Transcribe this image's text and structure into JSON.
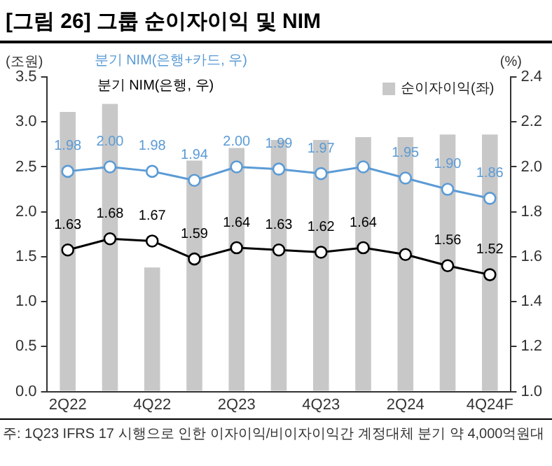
{
  "chart_data": {
    "type": "bar",
    "title": "[그림 26] 그룹 순이자이익 및 NIM",
    "ylabel": "(조원)",
    "y2label": "(%)",
    "categories": [
      "2Q22",
      null,
      "4Q22",
      null,
      "2Q23",
      null,
      "4Q23",
      null,
      "2Q24",
      null,
      "4Q24F"
    ],
    "series": [
      {
        "name": "순이자이익(좌)",
        "color": "#c8c8c8",
        "values": [
          3.11,
          3.2,
          1.38,
          2.57,
          2.71,
          2.8,
          2.8,
          2.83,
          2.83,
          2.86,
          2.86
        ]
      },
      {
        "name": "분기 NIM(은행+카드, 우)",
        "type": "line",
        "axis": "y2",
        "color": "#5b9bd5",
        "values": [
          1.98,
          2.0,
          1.98,
          1.94,
          2.0,
          1.99,
          1.97,
          2.0,
          1.95,
          1.9,
          1.86
        ],
        "value_labels": [
          "1.98",
          "2.00",
          "1.98",
          "1.94",
          "2.00",
          "1.99",
          "1.97",
          null,
          "1.95",
          "1.90",
          "1.86"
        ]
      },
      {
        "name": "분기 NIM(은행, 우)",
        "type": "line",
        "axis": "y2",
        "color": "#000000",
        "values": [
          1.63,
          1.68,
          1.67,
          1.59,
          1.64,
          1.63,
          1.62,
          1.64,
          1.61,
          1.56,
          1.52
        ],
        "value_labels": [
          "1.63",
          "1.68",
          "1.67",
          "1.59",
          "1.64",
          "1.63",
          "1.62",
          "1.64",
          null,
          "1.56",
          "1.52"
        ]
      }
    ],
    "ylim": [
      0,
      3.5
    ],
    "yticks": [
      {
        "value": 0,
        "label": "0.0"
      },
      {
        "value": 0.5,
        "label": "0.5"
      },
      {
        "value": 1,
        "label": "1.0"
      },
      {
        "value": 1.5,
        "label": "1.5"
      },
      {
        "value": 2,
        "label": "2.0"
      },
      {
        "value": 2.5,
        "label": "2.5"
      },
      {
        "value": 3,
        "label": "3.0"
      },
      {
        "value": 3.5,
        "label": "3.5"
      }
    ],
    "y2lim": [
      1.0,
      2.4
    ],
    "y2ticks": [
      {
        "value": 1,
        "label": "1.0"
      },
      {
        "value": 1.2,
        "label": "1.2"
      },
      {
        "value": 1.4,
        "label": "1.4"
      },
      {
        "value": 1.6,
        "label": "1.6"
      },
      {
        "value": 1.8,
        "label": "1.8"
      },
      {
        "value": 2,
        "label": "2.0"
      },
      {
        "value": 2.2,
        "label": "2.2"
      },
      {
        "value": 2.4,
        "label": "2.4"
      }
    ],
    "grid": false,
    "legend": "top",
    "marker": "circle",
    "line_style": "solid",
    "annotations": [
      "주: 1Q23 IFRS 17 시행으로 인한 이자이익/비이자이익간 계정대체 분기 약 4,000억원대"
    ]
  }
}
